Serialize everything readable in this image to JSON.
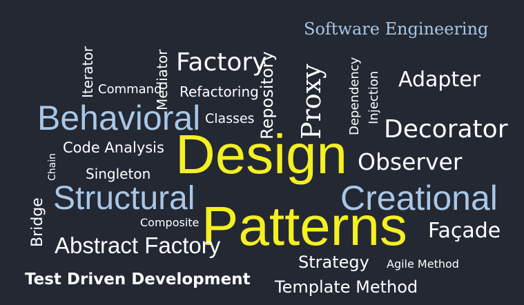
{
  "colors": {
    "background": "#232833",
    "white": "#ffffff",
    "blue": "#a9c7e6",
    "yellow": "#f4f022"
  },
  "words": {
    "software_engineering": "Software Engineering",
    "factory": "Factory",
    "iterator": "Iterator",
    "command": "Command",
    "mediator": "Mediator",
    "refactoring": "Refactoring",
    "repository": "Repository",
    "proxy": "Proxy",
    "dependency": "Dependency",
    "injection": "Injection",
    "adapter": "Adapter",
    "behavioral": "Behavioral",
    "classes": "Classes",
    "decorator": "Decorator",
    "code_analysis": "Code Analysis",
    "chain": "Chain",
    "design": "Design",
    "observer": "Observer",
    "singleton": "Singleton",
    "structural": "Structural",
    "creational": "Creational",
    "bridge": "Bridge",
    "composite": "Composite",
    "patterns": "Patterns",
    "facade": "Façade",
    "abstract_factory": "Abstract Factory",
    "strategy": "Strategy",
    "agile_method": "Agile Method",
    "test_driven_development": "Test Driven Development",
    "template_method": "Template Method"
  }
}
